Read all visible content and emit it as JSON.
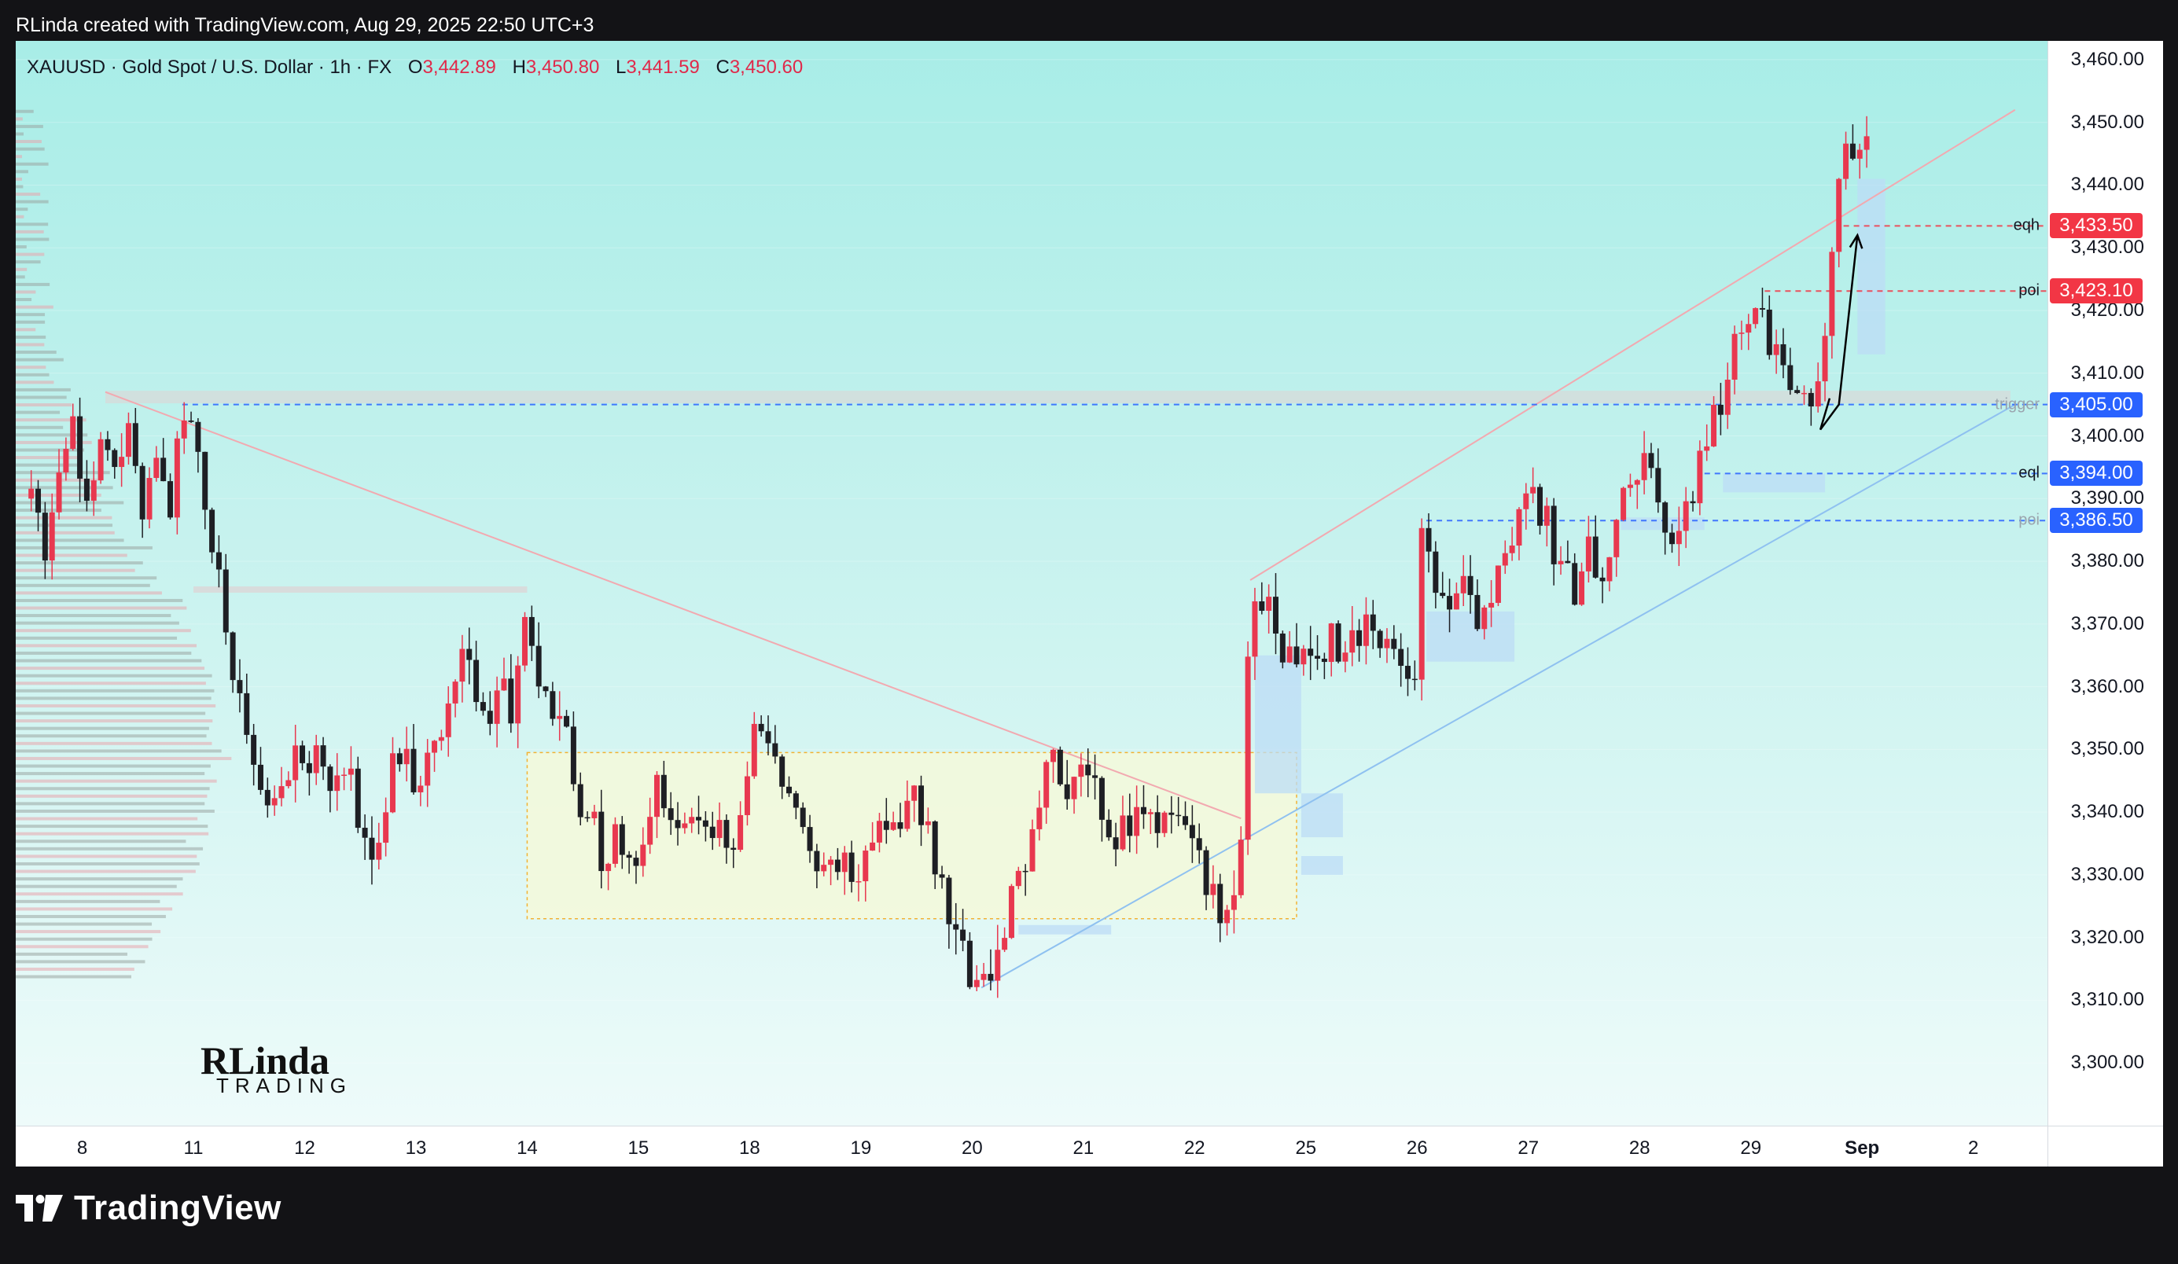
{
  "header": {
    "caption": "RLinda created with TradingView.com, Aug 29, 2025 22:50 UTC+3"
  },
  "legend": {
    "title": "XAUUSD · Gold Spot / U.S. Dollar · 1h · FX",
    "o_label": "O",
    "o_value": "3,442.89",
    "h_label": "H",
    "h_value": "3,450.80",
    "l_label": "L",
    "l_value": "3,441.59",
    "c_label": "C",
    "c_value": "3,450.60"
  },
  "branding": {
    "name": "TradingView"
  },
  "watermark": {
    "main": "RLinda",
    "sub": "TRADING"
  },
  "colors": {
    "up": "#e8384f",
    "down": "#1e1f24",
    "blue_tag": "#2962ff",
    "red_tag": "#f23645",
    "range_box": "#f5f9d9",
    "zone": "#bcdcf5"
  },
  "chart_data": {
    "type": "candlestick",
    "symbol": "XAUUSD",
    "interval": "1h",
    "ylim": [
      3290,
      3463
    ],
    "price_ticks": [
      "3,460.00",
      "3,450.00",
      "3,440.00",
      "3,430.00",
      "3,420.00",
      "3,410.00",
      "3,400.00",
      "3,390.00",
      "3,380.00",
      "3,370.00",
      "3,360.00",
      "3,350.00",
      "3,340.00",
      "3,330.00",
      "3,320.00",
      "3,310.00",
      "3,300.00"
    ],
    "price_tick_values": [
      3460,
      3450,
      3440,
      3430,
      3420,
      3410,
      3400,
      3390,
      3380,
      3370,
      3360,
      3350,
      3340,
      3330,
      3320,
      3310,
      3300
    ],
    "date_ticks": [
      {
        "label": "8",
        "idx": -1.2,
        "bold": false
      },
      {
        "label": "11",
        "idx": 0.0,
        "bold": false
      },
      {
        "label": "12",
        "idx": 1.2,
        "bold": false
      },
      {
        "label": "13",
        "idx": 2.4,
        "bold": false
      },
      {
        "label": "14",
        "idx": 3.6,
        "bold": false
      },
      {
        "label": "15",
        "idx": 4.8,
        "bold": false
      },
      {
        "label": "18",
        "idx": 6.0,
        "bold": false
      },
      {
        "label": "19",
        "idx": 7.2,
        "bold": false
      },
      {
        "label": "20",
        "idx": 8.4,
        "bold": false
      },
      {
        "label": "21",
        "idx": 9.6,
        "bold": false
      },
      {
        "label": "22",
        "idx": 10.8,
        "bold": false
      },
      {
        "label": "25",
        "idx": 12.0,
        "bold": false
      },
      {
        "label": "26",
        "idx": 13.2,
        "bold": false
      },
      {
        "label": "27",
        "idx": 14.4,
        "bold": false
      },
      {
        "label": "28",
        "idx": 15.6,
        "bold": false
      },
      {
        "label": "29",
        "idx": 16.8,
        "bold": false
      },
      {
        "label": "Sep",
        "idx": 18.0,
        "bold": true
      },
      {
        "label": "2",
        "idx": 19.2,
        "bold": false
      }
    ],
    "price_path": [
      {
        "d": -1.75,
        "p": 3390
      },
      {
        "d": -1.6,
        "p": 3380
      },
      {
        "d": -1.45,
        "p": 3395
      },
      {
        "d": -1.3,
        "p": 3405
      },
      {
        "d": -1.15,
        "p": 3388
      },
      {
        "d": -1.0,
        "p": 3400
      },
      {
        "d": -0.85,
        "p": 3392
      },
      {
        "d": -0.7,
        "p": 3402
      },
      {
        "d": -0.55,
        "p": 3385
      },
      {
        "d": -0.4,
        "p": 3398
      },
      {
        "d": -0.25,
        "p": 3390
      },
      {
        "d": -0.1,
        "p": 3403
      },
      {
        "d": 0.05,
        "p": 3400
      },
      {
        "d": 0.15,
        "p": 3385
      },
      {
        "d": 0.3,
        "p": 3375
      },
      {
        "d": 0.45,
        "p": 3360
      },
      {
        "d": 0.6,
        "p": 3352
      },
      {
        "d": 0.75,
        "p": 3346
      },
      {
        "d": 0.9,
        "p": 3340
      },
      {
        "d": 1.05,
        "p": 3350
      },
      {
        "d": 1.2,
        "p": 3345
      },
      {
        "d": 1.35,
        "p": 3350
      },
      {
        "d": 1.5,
        "p": 3342
      },
      {
        "d": 1.65,
        "p": 3348
      },
      {
        "d": 1.8,
        "p": 3338
      },
      {
        "d": 1.95,
        "p": 3332
      },
      {
        "d": 2.1,
        "p": 3345
      },
      {
        "d": 2.25,
        "p": 3350
      },
      {
        "d": 2.4,
        "p": 3342
      },
      {
        "d": 2.55,
        "p": 3348
      },
      {
        "d": 2.7,
        "p": 3352
      },
      {
        "d": 2.85,
        "p": 3365
      },
      {
        "d": 3.0,
        "p": 3360
      },
      {
        "d": 3.15,
        "p": 3355
      },
      {
        "d": 3.3,
        "p": 3362
      },
      {
        "d": 3.45,
        "p": 3356
      },
      {
        "d": 3.55,
        "p": 3370
      },
      {
        "d": 3.7,
        "p": 3362
      },
      {
        "d": 3.85,
        "p": 3355
      },
      {
        "d": 4.0,
        "p": 3352
      },
      {
        "d": 4.15,
        "p": 3342
      },
      {
        "d": 4.3,
        "p": 3338
      },
      {
        "d": 4.45,
        "p": 3332
      },
      {
        "d": 4.6,
        "p": 3336
      },
      {
        "d": 4.75,
        "p": 3330
      },
      {
        "d": 4.9,
        "p": 3340
      },
      {
        "d": 5.05,
        "p": 3345
      },
      {
        "d": 5.2,
        "p": 3338
      },
      {
        "d": 5.35,
        "p": 3342
      },
      {
        "d": 5.5,
        "p": 3335
      },
      {
        "d": 5.65,
        "p": 3340
      },
      {
        "d": 5.8,
        "p": 3330
      },
      {
        "d": 5.95,
        "p": 3345
      },
      {
        "d": 6.1,
        "p": 3355
      },
      {
        "d": 6.25,
        "p": 3348
      },
      {
        "d": 6.4,
        "p": 3345
      },
      {
        "d": 6.55,
        "p": 3338
      },
      {
        "d": 6.7,
        "p": 3332
      },
      {
        "d": 6.85,
        "p": 3330
      },
      {
        "d": 7.0,
        "p": 3335
      },
      {
        "d": 7.15,
        "p": 3330
      },
      {
        "d": 7.3,
        "p": 3336
      },
      {
        "d": 7.45,
        "p": 3340
      },
      {
        "d": 7.6,
        "p": 3338
      },
      {
        "d": 7.75,
        "p": 3344
      },
      {
        "d": 7.9,
        "p": 3338
      },
      {
        "d": 8.05,
        "p": 3328
      },
      {
        "d": 8.2,
        "p": 3320
      },
      {
        "d": 8.35,
        "p": 3316
      },
      {
        "d": 8.5,
        "p": 3313
      },
      {
        "d": 8.65,
        "p": 3318
      },
      {
        "d": 8.8,
        "p": 3325
      },
      {
        "d": 8.95,
        "p": 3330
      },
      {
        "d": 9.1,
        "p": 3340
      },
      {
        "d": 9.25,
        "p": 3347
      },
      {
        "d": 9.4,
        "p": 3344
      },
      {
        "d": 9.55,
        "p": 3350
      },
      {
        "d": 9.7,
        "p": 3345
      },
      {
        "d": 9.85,
        "p": 3340
      },
      {
        "d": 10.0,
        "p": 3335
      },
      {
        "d": 10.15,
        "p": 3342
      },
      {
        "d": 10.3,
        "p": 3337
      },
      {
        "d": 10.45,
        "p": 3341
      },
      {
        "d": 10.6,
        "p": 3338
      },
      {
        "d": 10.75,
        "p": 3334
      },
      {
        "d": 10.9,
        "p": 3330
      },
      {
        "d": 11.05,
        "p": 3326
      },
      {
        "d": 11.2,
        "p": 3322
      },
      {
        "d": 11.3,
        "p": 3335
      },
      {
        "d": 11.4,
        "p": 3372
      },
      {
        "d": 11.55,
        "p": 3375
      },
      {
        "d": 11.7,
        "p": 3368
      },
      {
        "d": 11.85,
        "p": 3362
      },
      {
        "d": 12.0,
        "p": 3366
      },
      {
        "d": 12.15,
        "p": 3362
      },
      {
        "d": 12.3,
        "p": 3368
      },
      {
        "d": 12.45,
        "p": 3364
      },
      {
        "d": 12.6,
        "p": 3370
      },
      {
        "d": 12.75,
        "p": 3366
      },
      {
        "d": 12.9,
        "p": 3372
      },
      {
        "d": 13.05,
        "p": 3362
      },
      {
        "d": 13.15,
        "p": 3354
      },
      {
        "d": 13.25,
        "p": 3384
      },
      {
        "d": 13.4,
        "p": 3378
      },
      {
        "d": 13.55,
        "p": 3372
      },
      {
        "d": 13.7,
        "p": 3376
      },
      {
        "d": 13.85,
        "p": 3370
      },
      {
        "d": 14.0,
        "p": 3374
      },
      {
        "d": 14.15,
        "p": 3380
      },
      {
        "d": 14.3,
        "p": 3386
      },
      {
        "d": 14.45,
        "p": 3391
      },
      {
        "d": 14.6,
        "p": 3386
      },
      {
        "d": 14.75,
        "p": 3380
      },
      {
        "d": 14.9,
        "p": 3376
      },
      {
        "d": 15.05,
        "p": 3382
      },
      {
        "d": 15.2,
        "p": 3378
      },
      {
        "d": 15.35,
        "p": 3386
      },
      {
        "d": 15.5,
        "p": 3393
      },
      {
        "d": 15.65,
        "p": 3395
      },
      {
        "d": 15.8,
        "p": 3390
      },
      {
        "d": 15.95,
        "p": 3386
      },
      {
        "d": 16.1,
        "p": 3390
      },
      {
        "d": 16.25,
        "p": 3395
      },
      {
        "d": 16.4,
        "p": 3403
      },
      {
        "d": 16.55,
        "p": 3410
      },
      {
        "d": 16.7,
        "p": 3416
      },
      {
        "d": 16.85,
        "p": 3421
      },
      {
        "d": 17.0,
        "p": 3414
      },
      {
        "d": 17.15,
        "p": 3410
      },
      {
        "d": 17.3,
        "p": 3407
      },
      {
        "d": 17.45,
        "p": 3408
      },
      {
        "d": 17.55,
        "p": 3406
      },
      {
        "d": 17.65,
        "p": 3425
      },
      {
        "d": 17.75,
        "p": 3440
      },
      {
        "d": 17.85,
        "p": 3447
      },
      {
        "d": 17.95,
        "p": 3446
      },
      {
        "d": 18.05,
        "p": 3450
      }
    ],
    "levels": [
      {
        "name": "eqh",
        "label": "eqh",
        "price": 3433.5,
        "tag": "3,433.50",
        "color": "#f23645",
        "style": "dash",
        "from": 17.8,
        "muted": false
      },
      {
        "name": "poi-upper",
        "label": "poi",
        "price": 3423.1,
        "tag": "3,423.10",
        "color": "#f23645",
        "style": "dash",
        "from": 16.95,
        "muted": false
      },
      {
        "name": "trigger",
        "label": "trigger",
        "price": 3405.0,
        "tag": "3,405.00",
        "color": "#2962ff",
        "style": "dash",
        "from": -0.12,
        "muted": true
      },
      {
        "name": "eql",
        "label": "eql",
        "price": 3394.0,
        "tag": "3,394.00",
        "color": "#2962ff",
        "style": "dash",
        "from": 16.3,
        "muted": false
      },
      {
        "name": "poi-lower",
        "label": "poi",
        "price": 3386.5,
        "tag": "3,386.50",
        "color": "#2962ff",
        "style": "dash",
        "from": 13.3,
        "muted": true
      }
    ],
    "range_box": {
      "from": 3.6,
      "to": 11.9,
      "top": 3349.5,
      "bottom": 3323
    },
    "trendlines": [
      {
        "name": "descending-trendline",
        "d1": -0.95,
        "p1": 3407,
        "d2": 11.3,
        "p2": 3339,
        "color": "#f2a9b0"
      },
      {
        "name": "rising-support-trendline",
        "d1": 8.5,
        "p1": 3312,
        "d2": 19.65,
        "p2": 3405,
        "color": "#8fc1f0"
      },
      {
        "name": "channel-top-trendline",
        "d1": 11.4,
        "p1": 3377,
        "d2": 19.65,
        "p2": 3452,
        "color": "#f2a9b0"
      }
    ],
    "projection_arrow": [
      {
        "d": 17.65,
        "p": 3406
      },
      {
        "d": 17.55,
        "p": 3401
      },
      {
        "d": 17.75,
        "p": 3405
      },
      {
        "d": 17.95,
        "p": 3432
      }
    ],
    "last_price": 3450.6
  }
}
